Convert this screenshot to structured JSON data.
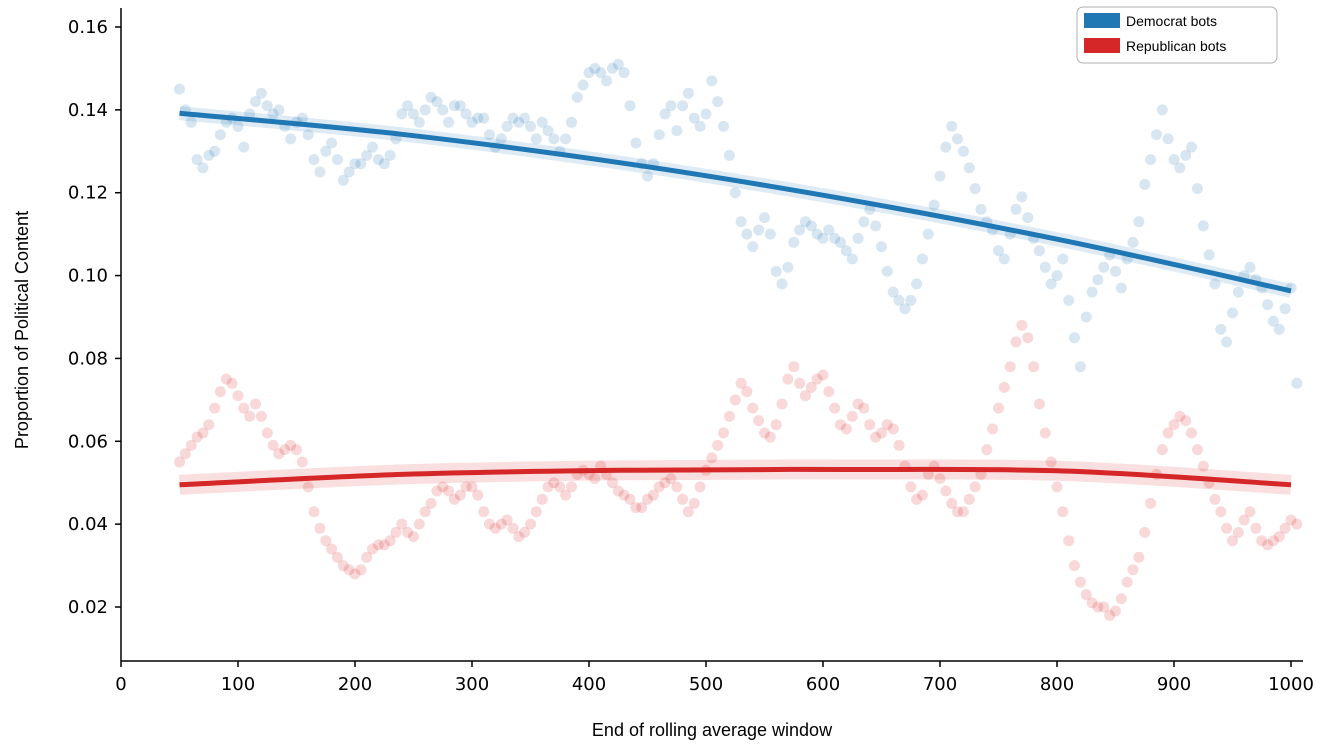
{
  "chart_data": {
    "type": "scatter",
    "xlabel": "End of rolling average window",
    "ylabel": "Proportion of Political Content",
    "xlim": [
      0,
      1010
    ],
    "ylim": [
      0.007,
      0.165
    ],
    "xticks": [
      0,
      100,
      200,
      300,
      400,
      500,
      600,
      700,
      800,
      900,
      1000
    ],
    "yticks": [
      0.02,
      0.04,
      0.06,
      0.08,
      0.1,
      0.12,
      0.14,
      0.16
    ],
    "ytick_labels": [
      "0.02",
      "0.04",
      "0.06",
      "0.08",
      "0.10",
      "0.12",
      "0.14",
      "0.16"
    ],
    "grid": false,
    "legend": {
      "placement": "top-right"
    },
    "point_opacity": 0.18,
    "series": [
      {
        "name": "Democrat bots",
        "color": "#1f77b4",
        "x_start": 50,
        "x_step": 5,
        "scatter_y": [
          0.145,
          0.14,
          0.137,
          0.128,
          0.126,
          0.129,
          0.13,
          0.134,
          0.137,
          0.138,
          0.136,
          0.131,
          0.139,
          0.142,
          0.144,
          0.141,
          0.139,
          0.14,
          0.136,
          0.133,
          0.137,
          0.138,
          0.134,
          0.128,
          0.125,
          0.13,
          0.132,
          0.128,
          0.123,
          0.125,
          0.127,
          0.127,
          0.129,
          0.131,
          0.128,
          0.127,
          0.129,
          0.133,
          0.139,
          0.141,
          0.139,
          0.137,
          0.14,
          0.143,
          0.142,
          0.14,
          0.137,
          0.141,
          0.141,
          0.139,
          0.137,
          0.138,
          0.138,
          0.134,
          0.131,
          0.133,
          0.136,
          0.138,
          0.137,
          0.138,
          0.136,
          0.133,
          0.137,
          0.135,
          0.133,
          0.13,
          0.133,
          0.137,
          0.143,
          0.146,
          0.149,
          0.15,
          0.149,
          0.147,
          0.15,
          0.151,
          0.149,
          0.141,
          0.132,
          0.127,
          0.124,
          0.127,
          0.134,
          0.139,
          0.141,
          0.135,
          0.141,
          0.144,
          0.138,
          0.136,
          0.139,
          0.147,
          0.142,
          0.136,
          0.129,
          0.12,
          0.113,
          0.11,
          0.107,
          0.111,
          0.114,
          0.11,
          0.101,
          0.098,
          0.102,
          0.108,
          0.111,
          0.113,
          0.112,
          0.11,
          0.109,
          0.111,
          0.109,
          0.108,
          0.106,
          0.104,
          0.109,
          0.113,
          0.116,
          0.112,
          0.107,
          0.101,
          0.096,
          0.094,
          0.092,
          0.094,
          0.098,
          0.104,
          0.11,
          0.117,
          0.124,
          0.131,
          0.136,
          0.133,
          0.13,
          0.126,
          0.121,
          0.116,
          0.113,
          0.111,
          0.106,
          0.104,
          0.11,
          0.116,
          0.119,
          0.114,
          0.109,
          0.106,
          0.102,
          0.098,
          0.1,
          0.104,
          0.094,
          0.085,
          0.078,
          0.09,
          0.096,
          0.099,
          0.102,
          0.105,
          0.101,
          0.097,
          0.104,
          0.108,
          0.113,
          0.122,
          0.128,
          0.134,
          0.14,
          0.133,
          0.128,
          0.126,
          0.129,
          0.131,
          0.121,
          0.112,
          0.105,
          0.098,
          0.087,
          0.084,
          0.091,
          0.096,
          0.1,
          0.102,
          0.099,
          0.097,
          0.093,
          0.089,
          0.087,
          0.092,
          0.097,
          0.074
        ],
        "fit_y": [
          0.1392,
          0.1341,
          0.1271,
          0.1184,
          0.1082,
          0.0963
        ]
      },
      {
        "name": "Republican bots",
        "color": "#d62728",
        "x_start": 50,
        "x_step": 5,
        "scatter_y": [
          0.055,
          0.057,
          0.059,
          0.061,
          0.062,
          0.064,
          0.068,
          0.072,
          0.075,
          0.074,
          0.071,
          0.068,
          0.066,
          0.069,
          0.066,
          0.062,
          0.059,
          0.057,
          0.058,
          0.059,
          0.058,
          0.055,
          0.049,
          0.043,
          0.039,
          0.036,
          0.034,
          0.032,
          0.03,
          0.029,
          0.028,
          0.029,
          0.032,
          0.034,
          0.035,
          0.035,
          0.036,
          0.038,
          0.04,
          0.038,
          0.037,
          0.04,
          0.043,
          0.045,
          0.048,
          0.049,
          0.048,
          0.046,
          0.047,
          0.049,
          0.049,
          0.047,
          0.043,
          0.04,
          0.039,
          0.04,
          0.041,
          0.039,
          0.037,
          0.038,
          0.04,
          0.043,
          0.046,
          0.049,
          0.05,
          0.049,
          0.047,
          0.049,
          0.052,
          0.053,
          0.052,
          0.051,
          0.054,
          0.052,
          0.05,
          0.048,
          0.047,
          0.046,
          0.044,
          0.044,
          0.046,
          0.047,
          0.049,
          0.05,
          0.051,
          0.049,
          0.046,
          0.043,
          0.045,
          0.049,
          0.053,
          0.056,
          0.059,
          0.062,
          0.066,
          0.07,
          0.074,
          0.072,
          0.068,
          0.065,
          0.062,
          0.061,
          0.064,
          0.069,
          0.075,
          0.078,
          0.074,
          0.071,
          0.073,
          0.075,
          0.076,
          0.072,
          0.068,
          0.064,
          0.063,
          0.066,
          0.069,
          0.068,
          0.064,
          0.061,
          0.062,
          0.064,
          0.063,
          0.059,
          0.054,
          0.049,
          0.046,
          0.047,
          0.052,
          0.054,
          0.051,
          0.048,
          0.045,
          0.043,
          0.043,
          0.046,
          0.049,
          0.052,
          0.058,
          0.063,
          0.068,
          0.073,
          0.078,
          0.084,
          0.088,
          0.085,
          0.078,
          0.069,
          0.062,
          0.055,
          0.049,
          0.043,
          0.036,
          0.03,
          0.026,
          0.023,
          0.021,
          0.02,
          0.02,
          0.018,
          0.019,
          0.022,
          0.026,
          0.029,
          0.032,
          0.038,
          0.045,
          0.052,
          0.058,
          0.062,
          0.064,
          0.066,
          0.065,
          0.062,
          0.058,
          0.054,
          0.05,
          0.046,
          0.043,
          0.039,
          0.036,
          0.038,
          0.041,
          0.043,
          0.039,
          0.036,
          0.035,
          0.036,
          0.037,
          0.039,
          0.041,
          0.04
        ],
        "fit_y": [
          0.0495,
          0.052,
          0.053,
          0.0532,
          0.0528,
          0.0495
        ]
      }
    ]
  }
}
